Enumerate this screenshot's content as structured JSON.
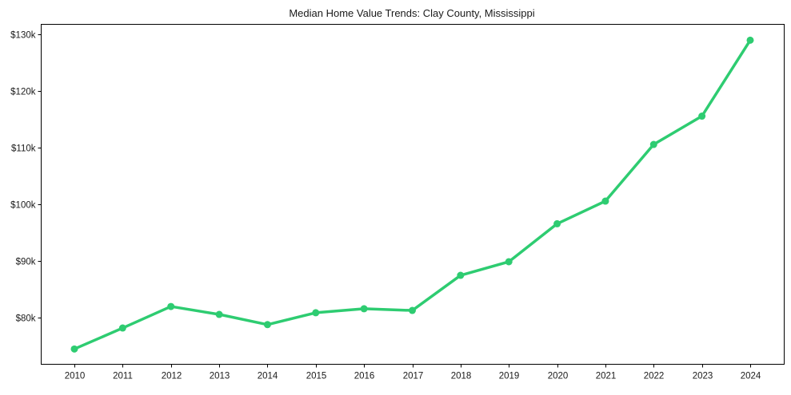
{
  "chart_data": {
    "type": "line",
    "title": "Median Home Value Trends: Clay County, Mississippi",
    "xlabel": "",
    "ylabel": "",
    "categories": [
      "2010",
      "2011",
      "2012",
      "2013",
      "2014",
      "2015",
      "2016",
      "2017",
      "2018",
      "2019",
      "2020",
      "2021",
      "2022",
      "2023",
      "2024"
    ],
    "series": [
      {
        "name": "Median Home Value",
        "color": "#2ecc71",
        "values": [
          74500,
          78200,
          82000,
          80600,
          78800,
          80900,
          81600,
          81300,
          87500,
          89900,
          96600,
          100600,
          110600,
          115600,
          129000
        ]
      }
    ],
    "yticks": [
      80000,
      90000,
      100000,
      110000,
      120000,
      130000
    ],
    "ytick_labels": [
      "$80k",
      "$90k",
      "$100k",
      "$110k",
      "$120k",
      "$130k"
    ],
    "ylim": [
      71800,
      131800
    ],
    "grid": false,
    "legend": null
  }
}
